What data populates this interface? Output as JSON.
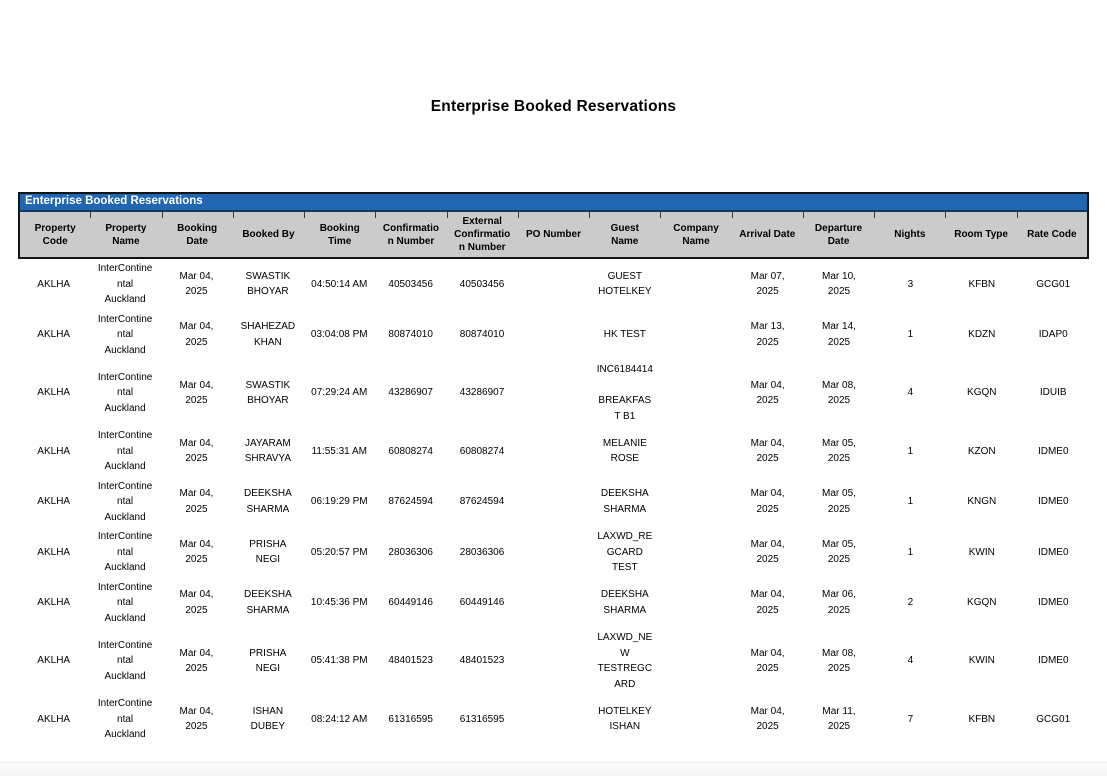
{
  "page_title": "Enterprise Booked Reservations",
  "colors": {
    "banner_blue": "#2166b1",
    "banner_underline": "#16365f",
    "header_gray": "#cbcbcb",
    "border_black": "#141414"
  },
  "report": {
    "banner_label": "Enterprise Booked Reservations",
    "columns": [
      "Property\nCode",
      "Property\nName",
      "Booking\nDate",
      "Booked By",
      "Booking\nTime",
      "Confirmatio\nn Number",
      "External\nConfirmatio\nn Number",
      "PO Number",
      "Guest\nName",
      "Company\nName",
      "Arrival Date",
      "Departure\nDate",
      "Nights",
      "Room Type",
      "Rate Code"
    ],
    "column_keys": [
      "property_code",
      "property_name",
      "booking_date",
      "booked_by",
      "booking_time",
      "confirmation_number",
      "external_confirmation_number",
      "po_number",
      "guest_name",
      "company_name",
      "arrival_date",
      "departure_date",
      "nights",
      "room_type",
      "rate_code"
    ],
    "rows": [
      {
        "property_code": "AKLHA",
        "property_name": "InterContine\nntal\nAuckland",
        "booking_date": "Mar 04,\n2025",
        "booked_by": "SWASTIK\nBHOYAR",
        "booking_time": "04:50:14 AM",
        "confirmation_number": "40503456",
        "external_confirmation_number": "40503456",
        "po_number": "",
        "guest_name": "GUEST\nHOTELKEY",
        "company_name": "",
        "arrival_date": "Mar 07,\n2025",
        "departure_date": "Mar 10,\n2025",
        "nights": "3",
        "room_type": "KFBN",
        "rate_code": "GCG01"
      },
      {
        "property_code": "AKLHA",
        "property_name": "InterContine\nntal\nAuckland",
        "booking_date": "Mar 04,\n2025",
        "booked_by": "SHAHEZAD\nKHAN",
        "booking_time": "03:04:08 PM",
        "confirmation_number": "80874010",
        "external_confirmation_number": "80874010",
        "po_number": "",
        "guest_name": "HK TEST",
        "company_name": "",
        "arrival_date": "Mar 13,\n2025",
        "departure_date": "Mar 14,\n2025",
        "nights": "1",
        "room_type": "KDZN",
        "rate_code": "IDAP0"
      },
      {
        "property_code": "AKLHA",
        "property_name": "InterContine\nntal\nAuckland",
        "booking_date": "Mar 04,\n2025",
        "booked_by": "SWASTIK\nBHOYAR",
        "booking_time": "07:29:24 AM",
        "confirmation_number": "43286907",
        "external_confirmation_number": "43286907",
        "po_number": "",
        "guest_name": "INC6184414\n\nBREAKFAS\nT B1",
        "company_name": "",
        "arrival_date": "Mar 04,\n2025",
        "departure_date": "Mar 08,\n2025",
        "nights": "4",
        "room_type": "KGQN",
        "rate_code": "IDUIB"
      },
      {
        "property_code": "AKLHA",
        "property_name": "InterContine\nntal\nAuckland",
        "booking_date": "Mar 04,\n2025",
        "booked_by": "JAYARAM\nSHRAVYA",
        "booking_time": "11:55:31 AM",
        "confirmation_number": "60808274",
        "external_confirmation_number": "60808274",
        "po_number": "",
        "guest_name": "MELANIE\nROSE",
        "company_name": "",
        "arrival_date": "Mar 04,\n2025",
        "departure_date": "Mar 05,\n2025",
        "nights": "1",
        "room_type": "KZON",
        "rate_code": "IDME0"
      },
      {
        "property_code": "AKLHA",
        "property_name": "InterContine\nntal\nAuckland",
        "booking_date": "Mar 04,\n2025",
        "booked_by": "DEEKSHA\nSHARMA",
        "booking_time": "06:19:29 PM",
        "confirmation_number": "87624594",
        "external_confirmation_number": "87624594",
        "po_number": "",
        "guest_name": "DEEKSHA\nSHARMA",
        "company_name": "",
        "arrival_date": "Mar 04,\n2025",
        "departure_date": "Mar 05,\n2025",
        "nights": "1",
        "room_type": "KNGN",
        "rate_code": "IDME0"
      },
      {
        "property_code": "AKLHA",
        "property_name": "InterContine\nntal\nAuckland",
        "booking_date": "Mar 04,\n2025",
        "booked_by": "PRISHA\nNEGI",
        "booking_time": "05:20:57 PM",
        "confirmation_number": "28036306",
        "external_confirmation_number": "28036306",
        "po_number": "",
        "guest_name": "LAXWD_RE\nGCARD\nTEST",
        "company_name": "",
        "arrival_date": "Mar 04,\n2025",
        "departure_date": "Mar 05,\n2025",
        "nights": "1",
        "room_type": "KWIN",
        "rate_code": "IDME0"
      },
      {
        "property_code": "AKLHA",
        "property_name": "InterContine\nntal\nAuckland",
        "booking_date": "Mar 04,\n2025",
        "booked_by": "DEEKSHA\nSHARMA",
        "booking_time": "10:45:36 PM",
        "confirmation_number": "60449146",
        "external_confirmation_number": "60449146",
        "po_number": "",
        "guest_name": "DEEKSHA\nSHARMA",
        "company_name": "",
        "arrival_date": "Mar 04,\n2025",
        "departure_date": "Mar 06,\n2025",
        "nights": "2",
        "room_type": "KGQN",
        "rate_code": "IDME0"
      },
      {
        "property_code": "AKLHA",
        "property_name": "InterContine\nntal\nAuckland",
        "booking_date": "Mar 04,\n2025",
        "booked_by": "PRISHA\nNEGI",
        "booking_time": "05:41:38 PM",
        "confirmation_number": "48401523",
        "external_confirmation_number": "48401523",
        "po_number": "",
        "guest_name": "LAXWD_NE\nW\nTESTREGC\nARD",
        "company_name": "",
        "arrival_date": "Mar 04,\n2025",
        "departure_date": "Mar 08,\n2025",
        "nights": "4",
        "room_type": "KWIN",
        "rate_code": "IDME0"
      },
      {
        "property_code": "AKLHA",
        "property_name": "InterContine\nntal\nAuckland",
        "booking_date": "Mar 04,\n2025",
        "booked_by": "ISHAN\nDUBEY",
        "booking_time": "08:24:12 AM",
        "confirmation_number": "61316595",
        "external_confirmation_number": "61316595",
        "po_number": "",
        "guest_name": "HOTELKEY\nISHAN",
        "company_name": "",
        "arrival_date": "Mar 04,\n2025",
        "departure_date": "Mar 11,\n2025",
        "nights": "7",
        "room_type": "KFBN",
        "rate_code": "GCG01"
      }
    ]
  }
}
